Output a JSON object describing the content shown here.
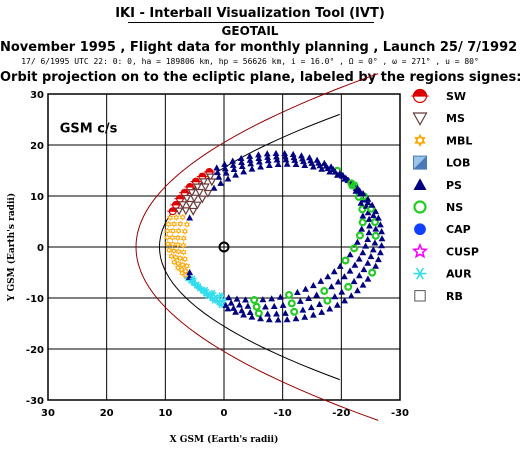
{
  "header": {
    "title": "IKI - Interball Visualization Tool (IVT)",
    "mission": "GEOTAIL",
    "subtitle": "November 1995 ,  Flight data for monthly planning ,   Launch 25/ 7/1992",
    "orbit_params": "17/ 6/1995 UTC 22: 0: 0, ha = 189806 km, hp =  56626 km, i = 16.0° , Ω =   0° , ω = 271° , u =  80°",
    "description": "Orbit projection on to the ecliptic plane, labeled by the regions signes:"
  },
  "plot": {
    "frame_label": "GSM c/s",
    "xlabel": "X GSM (Earth's radii)",
    "ylabel": "Y GSM (Earth's radii)",
    "x_ticks": [
      "30",
      "20",
      "10",
      "0",
      "-10",
      "-20",
      "-30"
    ],
    "y_ticks": [
      "-30",
      "-20",
      "-10",
      "0",
      "10",
      "20",
      "30"
    ],
    "xlim": [
      30,
      -30
    ],
    "ylim": [
      -30,
      30
    ]
  },
  "legend": [
    {
      "code": "SW",
      "label": "SW",
      "color": "#dd0000"
    },
    {
      "code": "MS",
      "label": "MS",
      "color": "#6a3a3a"
    },
    {
      "code": "MBL",
      "label": "MBL",
      "color": "#ffa500"
    },
    {
      "code": "LOB",
      "label": "LOB",
      "color": "#4a7ab8"
    },
    {
      "code": "PS",
      "label": "PS",
      "color": "#000080"
    },
    {
      "code": "NS",
      "label": "NS",
      "color": "#22cc22"
    },
    {
      "code": "CAP",
      "label": "CAP",
      "color": "#1040ff"
    },
    {
      "code": "CUSP",
      "label": "CUSP",
      "color": "#ff00ff"
    },
    {
      "code": "AUR",
      "label": "AUR",
      "color": "#33ddee"
    },
    {
      "code": "RB",
      "label": "RB",
      "color": "#555555"
    }
  ]
}
